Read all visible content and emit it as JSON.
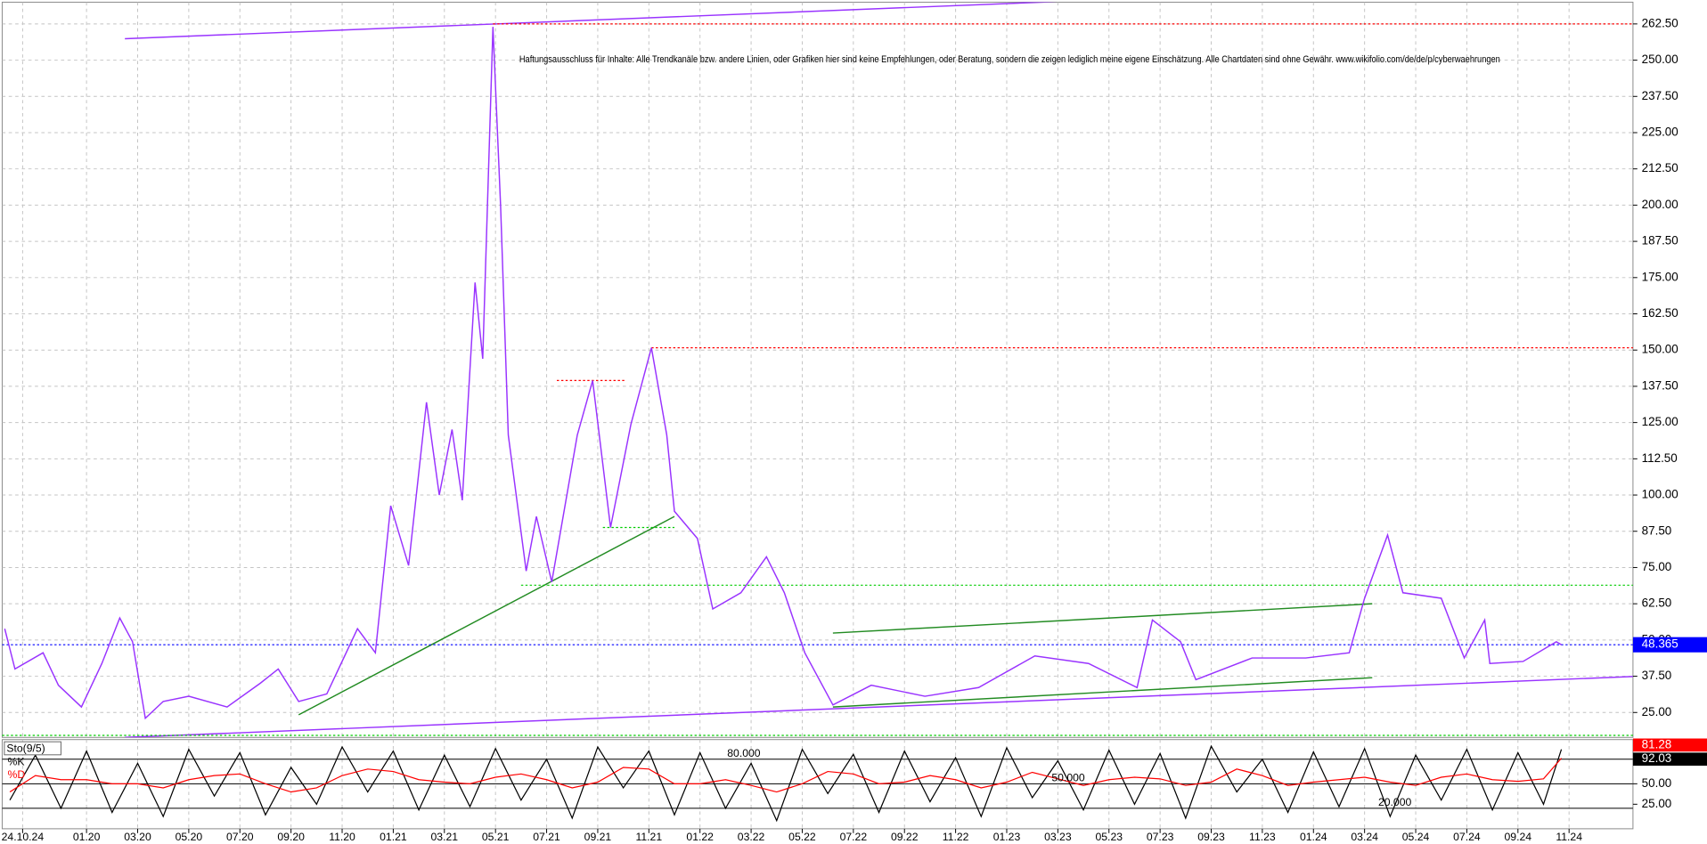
{
  "chart_data": [
    {
      "type": "line",
      "annotation": "Haftungsausschluss für Inhalte: Alle Trendkanäle bzw. andere Linien, oder Grafiken hier sind keine Empfehlungen, oder Beratung, sondern die zeigen lediglich meine eigene Einschätzung. Alle Chartdaten sind ohne Gewähr.  www.wikifolio.com/de/de/p/cyberwaehrungen",
      "xlim": [
        -0.3,
        63.5
      ],
      "xticks": [
        {
          "value": 0.5,
          "label": "24.10.24"
        },
        {
          "value": 3,
          "label": "01.20"
        },
        {
          "value": 5,
          "label": "03.20"
        },
        {
          "value": 7,
          "label": "05.20"
        },
        {
          "value": 9,
          "label": "07.20"
        },
        {
          "value": 11,
          "label": "09.20"
        },
        {
          "value": 13,
          "label": "11.20"
        },
        {
          "value": 15,
          "label": "01.21"
        },
        {
          "value": 17,
          "label": "03.21"
        },
        {
          "value": 19,
          "label": "05.21"
        },
        {
          "value": 21,
          "label": "07.21"
        },
        {
          "value": 23,
          "label": "09.21"
        },
        {
          "value": 25,
          "label": "11.21"
        },
        {
          "value": 27,
          "label": "01.22"
        },
        {
          "value": 29,
          "label": "03.22"
        },
        {
          "value": 31,
          "label": "05.22"
        },
        {
          "value": 33,
          "label": "07.22"
        },
        {
          "value": 35,
          "label": "09.22"
        },
        {
          "value": 37,
          "label": "11.22"
        },
        {
          "value": 39,
          "label": "01.23"
        },
        {
          "value": 41,
          "label": "03.23"
        },
        {
          "value": 43,
          "label": "05.23"
        },
        {
          "value": 45,
          "label": "07.23"
        },
        {
          "value": 47,
          "label": "09.23"
        },
        {
          "value": 49,
          "label": "11.23"
        },
        {
          "value": 51,
          "label": "01.24"
        },
        {
          "value": 53,
          "label": "03.24"
        },
        {
          "value": 55,
          "label": "05.24"
        },
        {
          "value": 57,
          "label": "07.24"
        },
        {
          "value": 59,
          "label": "09.24"
        },
        {
          "value": 61,
          "label": "11.24"
        }
      ],
      "ylim": [
        16.4,
        270
      ],
      "yticks": [
        {
          "value": 25,
          "label": "25.00"
        },
        {
          "value": 37.5,
          "label": "37.50"
        },
        {
          "value": 50,
          "label": "50.00"
        },
        {
          "value": 62.5,
          "label": "62.50"
        },
        {
          "value": 75,
          "label": "75.00"
        },
        {
          "value": 87.5,
          "label": "87.50"
        },
        {
          "value": 100,
          "label": "100.00"
        },
        {
          "value": 112.5,
          "label": "112.50"
        },
        {
          "value": 125,
          "label": "125.00"
        },
        {
          "value": 137.5,
          "label": "137.50"
        },
        {
          "value": 150,
          "label": "150.00"
        },
        {
          "value": 162.5,
          "label": "162.50"
        },
        {
          "value": 175,
          "label": "175.00"
        },
        {
          "value": 187.5,
          "label": "187.50"
        },
        {
          "value": 200,
          "label": "200.00"
        },
        {
          "value": 212.5,
          "label": "212.50"
        },
        {
          "value": 225,
          "label": "225.00"
        },
        {
          "value": 237.5,
          "label": "237.50"
        },
        {
          "value": 250,
          "label": "250.00"
        },
        {
          "value": 262.5,
          "label": "262.50"
        }
      ],
      "grid": true,
      "x": [
        -0.2,
        0.2,
        1.3,
        1.9,
        2.8,
        3.6,
        4.3,
        4.8,
        5.3,
        6.0,
        7.0,
        8.5,
        9.8,
        10.5,
        11.3,
        12.4,
        13.6,
        14.3,
        14.9,
        15.6,
        16.3,
        16.8,
        17.3,
        17.7,
        18.2,
        18.5,
        18.9,
        19.2,
        19.5,
        20.2,
        20.6,
        21.2,
        22.2,
        22.8,
        23.5,
        24.3,
        25.1,
        25.7,
        26.0,
        26.9,
        27.5,
        28.6,
        29.6,
        30.3,
        31.1,
        32.2,
        33.7,
        35.8,
        37.9,
        40.1,
        42.2,
        44.1,
        44.7,
        45.8,
        46.4,
        48.6,
        50.7,
        52.4,
        53.0,
        53.9,
        54.5,
        56.0,
        56.9,
        57.7,
        57.9,
        59.2,
        60.5,
        60.7
      ],
      "series": [
        {
          "color": "#9933ff",
          "values": [
            53.9,
            40,
            45.6,
            34.4,
            26.9,
            41.9,
            57.6,
            49.4,
            23,
            28.8,
            30.6,
            26.9,
            35.1,
            40,
            28.8,
            31.4,
            53.9,
            45.6,
            96.3,
            75.7,
            132,
            100,
            122.6,
            98.2,
            173.3,
            147,
            261.5,
            199.6,
            120.7,
            73.8,
            92.6,
            70,
            120.7,
            139.5,
            88.8,
            124.5,
            150.8,
            120.7,
            94.4,
            85,
            60.7,
            66.3,
            78.7,
            66.3,
            45.6,
            27.6,
            34.4,
            30.6,
            33.6,
            44.5,
            41.9,
            33.6,
            56.9,
            49.4,
            36.3,
            43.8,
            43.8,
            45.6,
            64.4,
            86.2,
            66.3,
            64.4,
            43.8,
            56.9,
            41.9,
            42.6,
            49.4,
            48.365
          ]
        }
      ],
      "lines": [
        {
          "x": [
            4.5,
            41.8
          ],
          "y": [
            257.4,
            270.5
          ],
          "color": "#9933ff",
          "style": "solid"
        },
        {
          "x": [
            4.5,
            63.5
          ],
          "y": [
            16.4,
            37.4
          ],
          "color": "#9933ff",
          "style": "solid"
        },
        {
          "x": [
            11.3,
            26.0
          ],
          "y": [
            24.2,
            92.6
          ],
          "color": "#228b22",
          "style": "solid"
        },
        {
          "x": [
            32.2,
            53.3
          ],
          "y": [
            52.4,
            62.5
          ],
          "color": "#228b22",
          "style": "solid"
        },
        {
          "x": [
            32.2,
            53.3
          ],
          "y": [
            26.9,
            37.0
          ],
          "color": "#228b22",
          "style": "solid"
        },
        {
          "x": [
            18.9,
            63.5
          ],
          "y": [
            262.5,
            262.5
          ],
          "color": "#ff0000",
          "style": "dotted"
        },
        {
          "x": [
            25.1,
            63.5
          ],
          "y": [
            150.8,
            150.8
          ],
          "color": "#ff0000",
          "style": "dotted"
        },
        {
          "x": [
            21.4,
            24.1
          ],
          "y": [
            139.5,
            139.5
          ],
          "color": "#ff0000",
          "style": "dotted"
        },
        {
          "x": [
            23.2,
            26.0
          ],
          "y": [
            88.8,
            88.8
          ],
          "color": "#00cc00",
          "style": "dotted"
        },
        {
          "x": [
            20.0,
            63.5
          ],
          "y": [
            68.9,
            68.9
          ],
          "color": "#00cc00",
          "style": "dotted"
        },
        {
          "x": [
            -0.3,
            63.5
          ],
          "y": [
            17.1,
            17.1
          ],
          "color": "#00cc00",
          "style": "dotted"
        },
        {
          "x": [
            -0.3,
            63.5
          ],
          "y": [
            48.365,
            48.365
          ],
          "color": "#0000ff",
          "style": "dotted"
        }
      ]
    },
    {
      "type": "line",
      "title": "Sto(9/5)",
      "ylim": [
        -5,
        104
      ],
      "yticks": [
        {
          "value": 50,
          "label": "50.00"
        },
        {
          "value": 25,
          "label": "25.00"
        }
      ],
      "levels": [
        {
          "value": 80,
          "label": "80.000"
        },
        {
          "value": 50,
          "label": "50.000"
        },
        {
          "value": 20,
          "label": "20.000"
        }
      ],
      "x": [
        0,
        1,
        2,
        3,
        4,
        5,
        6,
        7,
        8,
        9,
        10,
        11,
        12,
        13,
        14,
        15,
        16,
        17,
        18,
        19,
        20,
        21,
        22,
        23,
        24,
        25,
        26,
        27,
        28,
        29,
        30,
        31,
        32,
        33,
        34,
        35,
        36,
        37,
        38,
        39,
        40,
        41,
        42,
        43,
        44,
        45,
        46,
        47,
        48,
        49,
        50,
        51,
        52,
        53,
        54,
        55,
        56,
        57,
        58,
        59,
        60,
        60.7
      ],
      "series": [
        {
          "name": "%K",
          "color": "#000000",
          "values": [
            30,
            85,
            20,
            90,
            15,
            75,
            10,
            92,
            35,
            88,
            12,
            70,
            25,
            95,
            40,
            90,
            18,
            85,
            22,
            93,
            30,
            80,
            8,
            95,
            45,
            90,
            12,
            88,
            20,
            75,
            5,
            92,
            38,
            86,
            15,
            90,
            28,
            82,
            10,
            94,
            33,
            78,
            18,
            91,
            25,
            87,
            8,
            96,
            40,
            80,
            15,
            89,
            22,
            93,
            10,
            85,
            30,
            92,
            18,
            88,
            25,
            92.03
          ]
        },
        {
          "name": "%D",
          "color": "#ff0000",
          "values": [
            40,
            60,
            55,
            55,
            50,
            50,
            45,
            55,
            60,
            62,
            50,
            40,
            45,
            60,
            68,
            65,
            55,
            52,
            50,
            58,
            62,
            55,
            45,
            52,
            70,
            68,
            50,
            50,
            55,
            48,
            40,
            50,
            65,
            62,
            50,
            52,
            60,
            55,
            45,
            52,
            64,
            56,
            48,
            55,
            58,
            56,
            48,
            52,
            68,
            60,
            48,
            52,
            55,
            58,
            52,
            48,
            58,
            62,
            55,
            53,
            56,
            81.28
          ]
        }
      ]
    }
  ]
}
